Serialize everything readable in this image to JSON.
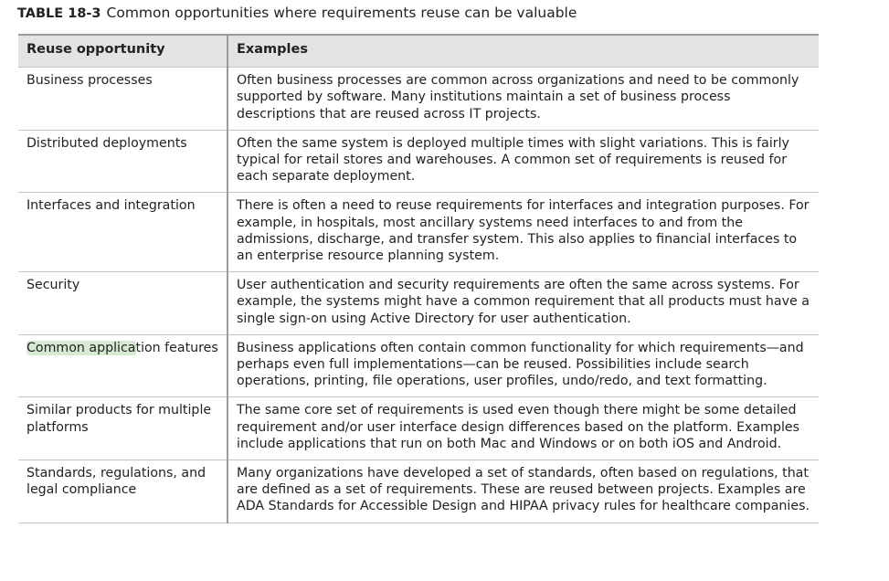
{
  "caption": {
    "label": "TABLE 18-3",
    "title": "Common opportunities where requirements reuse can be valuable"
  },
  "table": {
    "headers": [
      "Reuse opportunity",
      "Examples"
    ],
    "rows": [
      {
        "opportunity": "Business processes",
        "examples": "Often business processes are common across organizations and need to be commonly supported by software. Many institutions maintain a set of business process descriptions that are reused across IT projects."
      },
      {
        "opportunity": "Distributed deployments",
        "examples": "Often the same system is deployed multiple times with slight variations. This is fairly typical for retail stores and warehouses. A common set of requirements is reused for each separate deployment."
      },
      {
        "opportunity": "Interfaces and integration",
        "examples": "There is often a need to reuse requirements for interfaces and integration purposes. For example, in hospitals, most ancillary systems need interfaces to and from the admissions, discharge, and transfer system. This also applies to financial interfaces to an enterprise resource planning system."
      },
      {
        "opportunity": "Security",
        "examples": "User authentication and security requirements are often the same across systems. For example, the systems might have a common requirement that all products must have a single sign-on using Active Directory for user authentication."
      },
      {
        "opportunity_highlight": "Common applica",
        "opportunity_rest": "tion features",
        "examples": "Business applications often contain common functionality for which requirements—and perhaps even full implementations—can be reused. Possibilities include search operations, printing, file operations, user profiles, undo/redo, and text formatting."
      },
      {
        "opportunity": "Similar products for multiple platforms",
        "examples": "The same core set of requirements is used even though there might be some detailed requirement and/or user interface design differences based on the platform. Examples include applications that run on both Mac and Windows or on both iOS and Android."
      },
      {
        "opportunity": "Standards, regulations, and legal compliance",
        "examples": "Many organizations have developed a set of standards, often based on regulations, that are defined as a set of requirements. These are reused between projects. Examples are ADA Standards for Accessible Design and HIPAA privacy rules for healthcare companies."
      }
    ]
  }
}
